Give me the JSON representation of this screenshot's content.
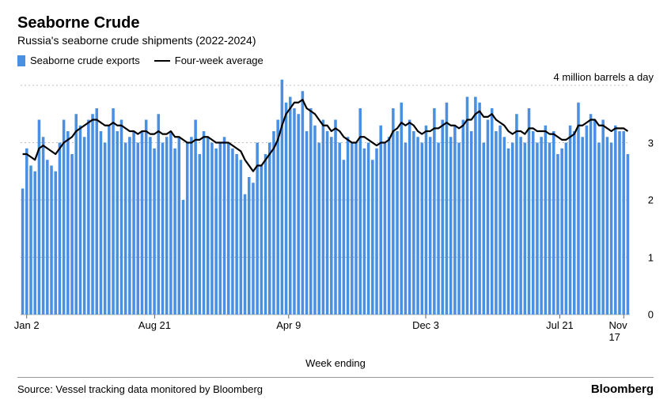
{
  "header": {
    "title": "Seaborne Crude",
    "subtitle": "Russia's seaborne crude shipments (2022-2024)"
  },
  "legend": {
    "bars": "Seaborne crude exports",
    "line": "Four-week average"
  },
  "chart": {
    "type": "bar+line",
    "annotation": "4 million barrels a day",
    "bar_color": "#4a90e2",
    "line_color": "#000000",
    "line_width": 2.2,
    "grid_color": "#bfbfbf",
    "axis_color": "#666666",
    "background_color": "#ffffff",
    "y_max": 4,
    "y_min": 0,
    "y_ticks": [
      0,
      1,
      2,
      3,
      4
    ],
    "x_label": "Week ending",
    "x_tick_labels": [
      "Jan 2",
      "Aug 21",
      "Apr 9",
      "Dec 3",
      "Jul 21",
      "Nov 17"
    ],
    "x_tick_positions": [
      0.01,
      0.22,
      0.44,
      0.665,
      0.885,
      0.99
    ],
    "bar_values": [
      2.2,
      2.9,
      2.6,
      2.5,
      3.4,
      3.1,
      2.7,
      2.6,
      2.5,
      3.0,
      3.4,
      3.2,
      2.8,
      3.5,
      3.3,
      3.1,
      3.4,
      3.5,
      3.6,
      3.2,
      3.0,
      3.3,
      3.6,
      3.2,
      3.4,
      3.0,
      3.1,
      3.2,
      3.0,
      3.2,
      3.4,
      3.1,
      2.9,
      3.5,
      3.0,
      3.1,
      3.2,
      2.9,
      3.1,
      2.0,
      3.0,
      3.1,
      3.4,
      2.8,
      3.2,
      3.1,
      3.0,
      2.9,
      3.0,
      3.1,
      3.0,
      2.9,
      2.8,
      2.7,
      2.1,
      2.4,
      2.3,
      3.0,
      2.6,
      2.8,
      3.0,
      3.2,
      3.4,
      4.1,
      3.7,
      3.8,
      3.6,
      3.5,
      3.9,
      3.2,
      3.6,
      3.3,
      3.0,
      3.4,
      3.2,
      3.1,
      3.4,
      3.0,
      2.7,
      3.1,
      3.0,
      3.0,
      3.6,
      2.9,
      3.0,
      2.7,
      2.9,
      3.3,
      3.0,
      3.1,
      3.6,
      3.2,
      3.7,
      3.0,
      3.4,
      3.2,
      3.1,
      3.0,
      3.3,
      3.1,
      3.6,
      3.0,
      3.4,
      3.7,
      3.1,
      3.3,
      3.0,
      3.4,
      3.8,
      3.2,
      3.8,
      3.7,
      3.0,
      3.4,
      3.6,
      3.2,
      3.3,
      3.1,
      2.9,
      3.0,
      3.5,
      3.1,
      3.0,
      3.6,
      3.2,
      3.0,
      3.1,
      3.3,
      3.0,
      3.2,
      2.8,
      2.9,
      3.0,
      3.3,
      3.2,
      3.7,
      3.1,
      3.3,
      3.5,
      3.4,
      3.0,
      3.4,
      3.1,
      3.0,
      3.3,
      3.2,
      3.2,
      2.8
    ],
    "line_values": [
      2.8,
      2.8,
      2.75,
      2.7,
      2.9,
      2.95,
      2.9,
      2.85,
      2.8,
      2.9,
      3.0,
      3.05,
      3.1,
      3.2,
      3.25,
      3.3,
      3.35,
      3.4,
      3.4,
      3.35,
      3.3,
      3.3,
      3.35,
      3.3,
      3.3,
      3.25,
      3.2,
      3.2,
      3.15,
      3.2,
      3.2,
      3.15,
      3.15,
      3.2,
      3.15,
      3.15,
      3.2,
      3.1,
      3.1,
      3.05,
      3.0,
      3.0,
      3.05,
      3.05,
      3.1,
      3.1,
      3.05,
      3.0,
      3.0,
      3.0,
      3.0,
      2.95,
      2.9,
      2.85,
      2.7,
      2.6,
      2.5,
      2.6,
      2.6,
      2.7,
      2.8,
      2.9,
      3.05,
      3.3,
      3.5,
      3.6,
      3.7,
      3.7,
      3.75,
      3.6,
      3.55,
      3.5,
      3.4,
      3.3,
      3.3,
      3.2,
      3.25,
      3.2,
      3.1,
      3.05,
      3.0,
      3.0,
      3.1,
      3.1,
      3.05,
      3.0,
      2.95,
      3.0,
      3.0,
      3.05,
      3.2,
      3.25,
      3.35,
      3.3,
      3.35,
      3.3,
      3.2,
      3.15,
      3.2,
      3.2,
      3.25,
      3.25,
      3.3,
      3.35,
      3.3,
      3.3,
      3.25,
      3.3,
      3.4,
      3.4,
      3.5,
      3.55,
      3.45,
      3.45,
      3.5,
      3.4,
      3.35,
      3.3,
      3.2,
      3.15,
      3.2,
      3.2,
      3.15,
      3.25,
      3.25,
      3.2,
      3.2,
      3.2,
      3.15,
      3.15,
      3.1,
      3.05,
      3.05,
      3.1,
      3.15,
      3.3,
      3.3,
      3.35,
      3.4,
      3.4,
      3.3,
      3.3,
      3.25,
      3.2,
      3.25,
      3.25,
      3.25,
      3.2
    ]
  },
  "footer": {
    "source": "Source: Vessel tracking data monitored by Bloomberg",
    "brand": "Bloomberg"
  }
}
